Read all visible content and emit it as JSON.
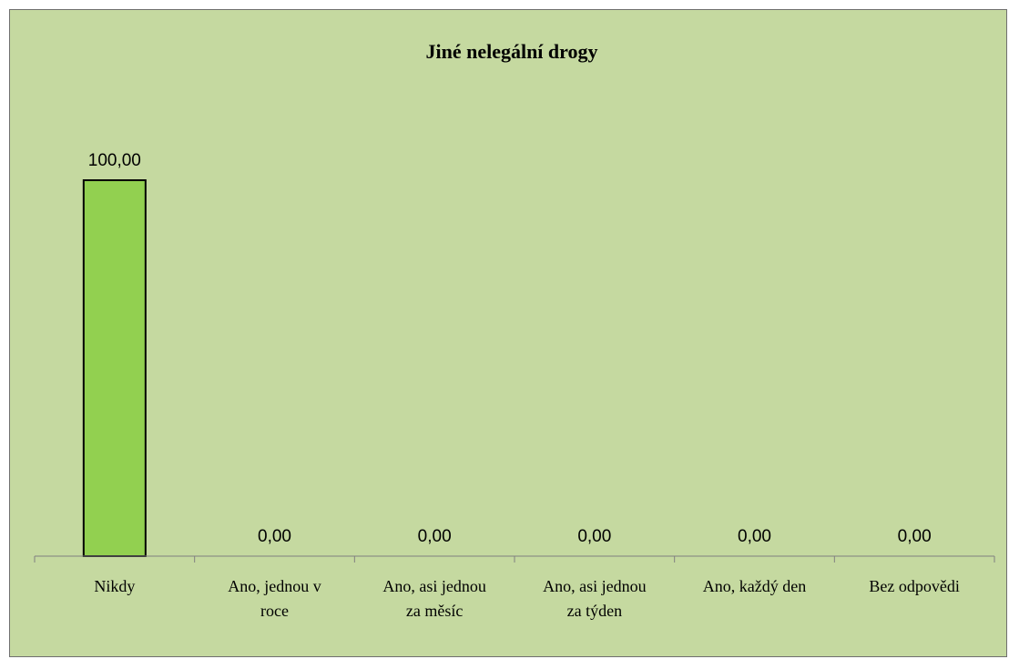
{
  "chart_data": {
    "type": "bar",
    "title": "Jiné nelegální drogy",
    "categories": [
      [
        "Nikdy"
      ],
      [
        "Ano, jednou v",
        "roce"
      ],
      [
        "Ano, asi jednou",
        "za měsíc"
      ],
      [
        "Ano, asi jednou",
        "za týden"
      ],
      [
        "Ano, každý den"
      ],
      [
        "Bez odpovědi"
      ]
    ],
    "values": [
      100,
      0,
      0,
      0,
      0,
      0
    ],
    "value_labels": [
      "100,00",
      "0,00",
      "0,00",
      "0,00",
      "0,00",
      "0,00"
    ],
    "ylim": [
      0,
      100
    ],
    "grid": false,
    "legend": "none",
    "colors": {
      "background": "#c5d9a0",
      "bar_fill": "#92d050",
      "bar_stroke": "#000000",
      "axis": "#808080"
    }
  }
}
